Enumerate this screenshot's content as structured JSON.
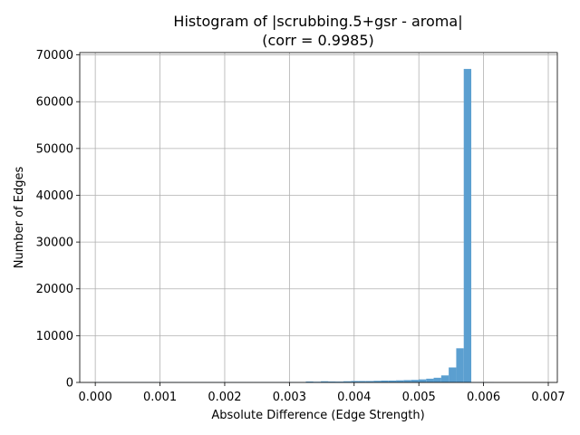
{
  "chart_data": {
    "type": "bar",
    "title_line1": "Histogram of |scrubbing.5+gsr - aroma|",
    "title_line2": "(corr = 0.9985)",
    "xlabel": "Absolute Difference (Edge Strength)",
    "ylabel": "Number of Edges",
    "xlim": [
      -0.00024,
      0.00714
    ],
    "ylim": [
      0,
      70500
    ],
    "grid": true,
    "bar_color": "#5b9fd0",
    "bin_width": 0.0001162,
    "bin_left_edges": [
      0.0,
      0.0001162,
      0.0002324,
      0.0003486,
      0.0004648,
      0.000581,
      0.0006972,
      0.0008134,
      0.0009296,
      0.0010458,
      0.001162,
      0.0012782,
      0.0013944,
      0.0015106,
      0.0016268,
      0.001743,
      0.0018592,
      0.0019754,
      0.0020916,
      0.0022078,
      0.002324,
      0.0024402,
      0.0025564,
      0.0026726,
      0.0027888,
      0.002905,
      0.0030212,
      0.0031374,
      0.0032536,
      0.0033698,
      0.003486,
      0.0036022,
      0.0037184,
      0.0038346,
      0.0039508,
      0.004067,
      0.0041832,
      0.0042994,
      0.0044156,
      0.0045318,
      0.004648,
      0.0047642,
      0.0048804,
      0.0049966,
      0.0051128,
      0.005229,
      0.0053452,
      0.0054614,
      0.0055776,
      0.0056938,
      0.00581,
      0.0059262,
      0.0060424
    ],
    "values": [
      40,
      40,
      40,
      40,
      40,
      40,
      40,
      40,
      40,
      40,
      40,
      40,
      40,
      40,
      40,
      40,
      40,
      40,
      40,
      40,
      40,
      40,
      40,
      40,
      40,
      60,
      60,
      60,
      200,
      150,
      250,
      200,
      180,
      250,
      300,
      300,
      300,
      350,
      400,
      400,
      450,
      500,
      550,
      650,
      800,
      1000,
      1500,
      3200,
      7300,
      67000,
      50,
      40,
      30
    ],
    "x_ticks": [
      {
        "value": 0.0,
        "label": "0.000"
      },
      {
        "value": 0.001,
        "label": "0.001"
      },
      {
        "value": 0.002,
        "label": "0.002"
      },
      {
        "value": 0.003,
        "label": "0.003"
      },
      {
        "value": 0.004,
        "label": "0.004"
      },
      {
        "value": 0.005,
        "label": "0.005"
      },
      {
        "value": 0.006,
        "label": "0.006"
      },
      {
        "value": 0.007,
        "label": "0.007"
      }
    ],
    "y_ticks": [
      {
        "value": 0,
        "label": "0"
      },
      {
        "value": 10000,
        "label": "10000"
      },
      {
        "value": 20000,
        "label": "20000"
      },
      {
        "value": 30000,
        "label": "30000"
      },
      {
        "value": 40000,
        "label": "40000"
      },
      {
        "value": 50000,
        "label": "50000"
      },
      {
        "value": 60000,
        "label": "60000"
      },
      {
        "value": 70000,
        "label": "70000"
      }
    ]
  }
}
